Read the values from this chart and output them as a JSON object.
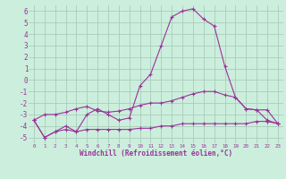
{
  "x": [
    0,
    1,
    2,
    3,
    4,
    5,
    6,
    7,
    8,
    9,
    10,
    11,
    12,
    13,
    14,
    15,
    16,
    17,
    18,
    19,
    20,
    21,
    22,
    23
  ],
  "line1": [
    -3.5,
    -5.0,
    -4.5,
    -4.0,
    -4.5,
    -3.0,
    -2.5,
    -3.0,
    -3.5,
    -3.3,
    -0.5,
    0.5,
    3.0,
    5.5,
    6.0,
    6.2,
    5.3,
    4.7,
    1.2,
    -1.5,
    -2.5,
    -2.6,
    -3.5,
    -3.8
  ],
  "line2": [
    -3.5,
    -3.0,
    -3.0,
    -2.8,
    -2.5,
    -2.3,
    -2.7,
    -2.8,
    -2.7,
    -2.5,
    -2.2,
    -2.0,
    -2.0,
    -1.8,
    -1.5,
    -1.2,
    -1.0,
    -1.0,
    -1.3,
    -1.5,
    -2.5,
    -2.6,
    -2.6,
    -3.8
  ],
  "line3": [
    -3.5,
    -5.0,
    -4.5,
    -4.3,
    -4.5,
    -4.3,
    -4.3,
    -4.3,
    -4.3,
    -4.3,
    -4.2,
    -4.2,
    -4.0,
    -4.0,
    -3.8,
    -3.8,
    -3.8,
    -3.8,
    -3.8,
    -3.8,
    -3.8,
    -3.6,
    -3.6,
    -3.8
  ],
  "color": "#993399",
  "bg_color": "#cceedd",
  "grid_color": "#aaccbb",
  "xlabel": "Windchill (Refroidissement éolien,°C)",
  "xlim": [
    -0.5,
    23.5
  ],
  "ylim": [
    -5.5,
    6.5
  ],
  "yticks": [
    -5,
    -4,
    -3,
    -2,
    -1,
    0,
    1,
    2,
    3,
    4,
    5,
    6
  ],
  "xticks": [
    0,
    1,
    2,
    3,
    4,
    5,
    6,
    7,
    8,
    9,
    10,
    11,
    12,
    13,
    14,
    15,
    16,
    17,
    18,
    19,
    20,
    21,
    22,
    23
  ],
  "xtick_labels": [
    "0",
    "1",
    "2",
    "3",
    "4",
    "5",
    "6",
    "7",
    "8",
    "9",
    "10",
    "11",
    "12",
    "13",
    "14",
    "15",
    "16",
    "17",
    "18",
    "19",
    "20",
    "21",
    "22",
    "23"
  ]
}
